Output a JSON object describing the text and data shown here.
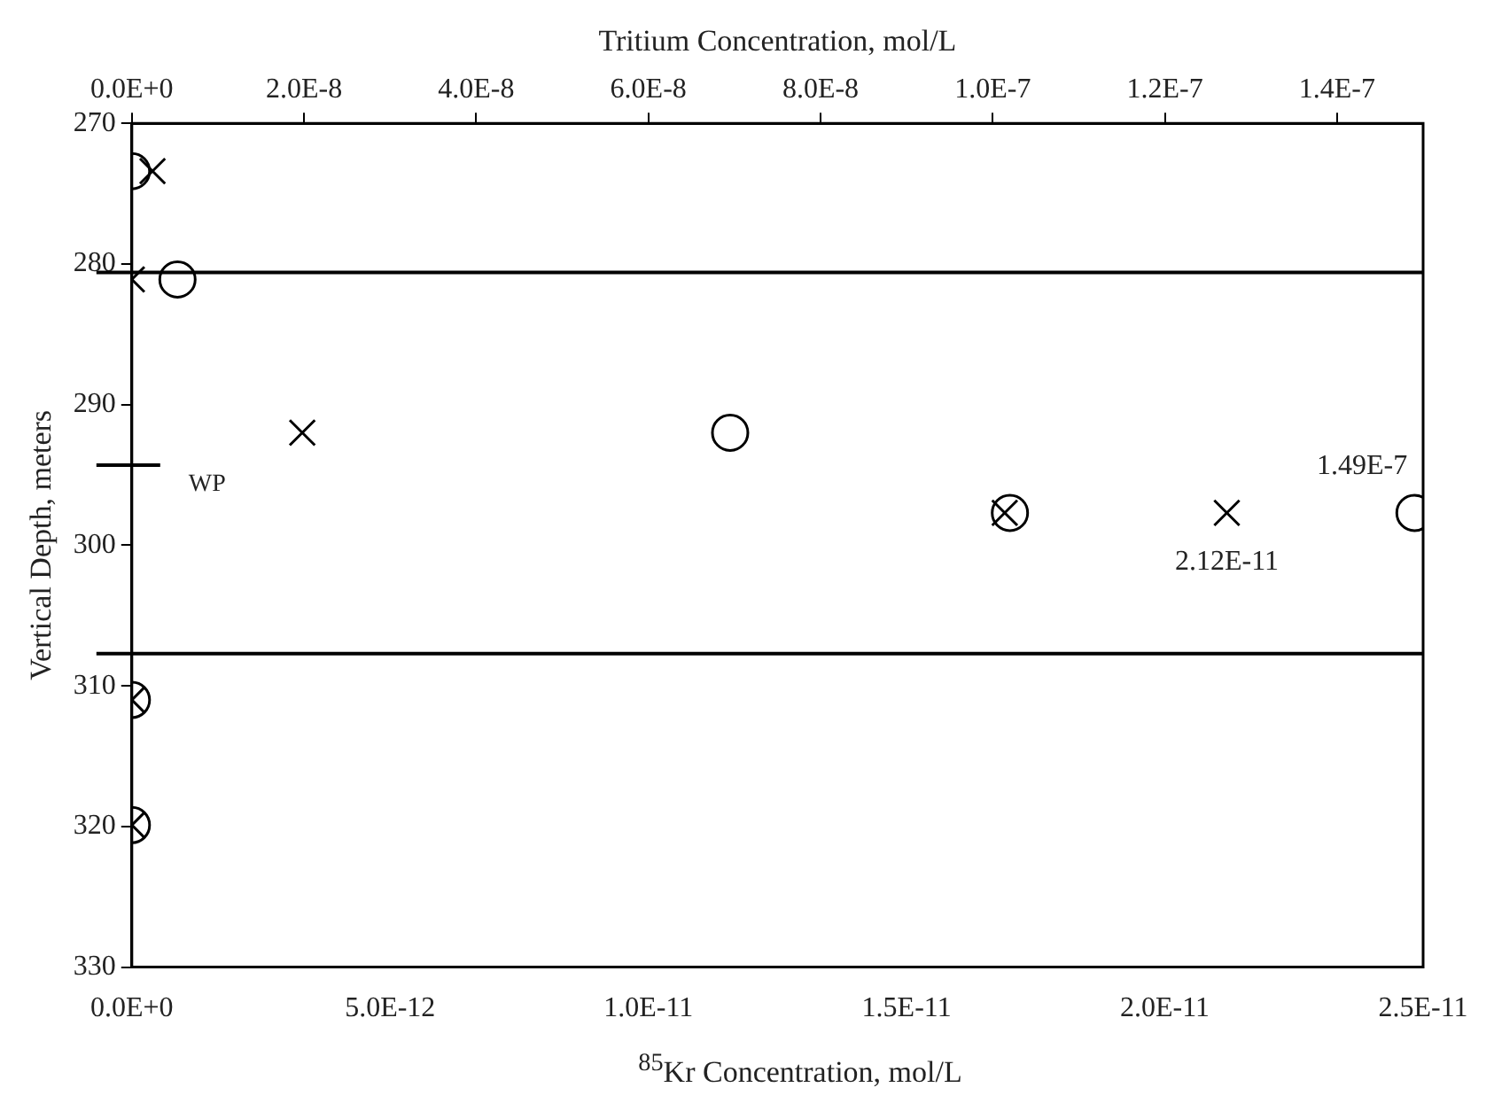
{
  "chart_data": {
    "type": "scatter",
    "xlabel": "$^{85}$Kr Concentration, mol/L",
    "x2label": "Tritium Concentration, mol/L",
    "ylabel": "Vertical Depth, meters",
    "xlim": [
      0,
      2.5e-11
    ],
    "xticks": [
      {
        "value": 0,
        "label": "0.0E+0"
      },
      {
        "value": 5e-12,
        "label": "5.0E-12"
      },
      {
        "value": 1e-11,
        "label": "1.0E-11"
      },
      {
        "value": 1.5e-11,
        "label": "1.5E-11"
      },
      {
        "value": 2e-11,
        "label": "2.0E-11"
      },
      {
        "value": 2.5e-11,
        "label": "2.5E-11"
      }
    ],
    "x2lim": [
      0,
      1.5e-07
    ],
    "x2ticks": [
      {
        "value": 0,
        "label": "0.0E+0"
      },
      {
        "value": 2e-08,
        "label": "2.0E-8"
      },
      {
        "value": 4e-08,
        "label": "4.0E-8"
      },
      {
        "value": 6e-08,
        "label": "6.0E-8"
      },
      {
        "value": 8e-08,
        "label": "8.0E-8"
      },
      {
        "value": 1e-07,
        "label": "1.0E-7"
      },
      {
        "value": 1.2e-07,
        "label": "1.2E-7"
      },
      {
        "value": 1.4e-07,
        "label": "1.4E-7"
      }
    ],
    "ylim": [
      330,
      270
    ],
    "yticks": [
      270,
      280,
      290,
      300,
      310,
      320,
      330
    ],
    "series": [
      {
        "color": "#000000",
        "marker": "cross",
        "x": [
          4e-13,
          0,
          3.3e-12,
          1.69e-11,
          2.12e-11,
          0,
          0
        ],
        "values": [
          273.4,
          281.1,
          292,
          297.7,
          297.7,
          311,
          319.9
        ]
      },
      {
        "color": "#000000",
        "marker": "circle",
        "axis": "x2",
        "x": [
          0,
          5.3e-09,
          6.95e-08,
          1.02e-07,
          1.49e-07,
          0,
          0
        ],
        "values": [
          273.4,
          281.1,
          292,
          297.7,
          297.7,
          311,
          319.9
        ]
      }
    ],
    "ref_lines": [
      {
        "axis": "y",
        "value": 280.6,
        "color": "#000000"
      },
      {
        "axis": "y",
        "value": 307.7,
        "color": "#000000"
      },
      {
        "axis": "y",
        "value": 294.3,
        "label": "WP",
        "color": "#000000"
      }
    ],
    "annotations": [
      "2.12E-11",
      "1.49E-7"
    ],
    "grid": false,
    "legend": false
  }
}
